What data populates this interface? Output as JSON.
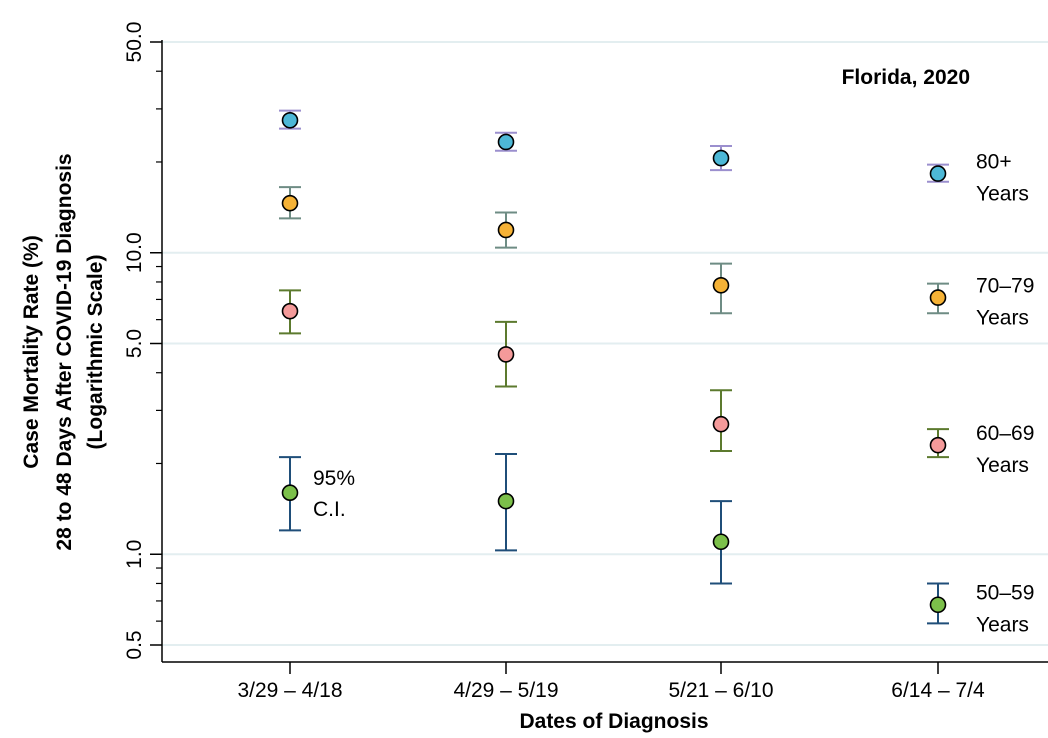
{
  "chart_data": {
    "type": "scatter",
    "title": "",
    "annotation": "Florida, 2020",
    "xlabel": "Dates of Diagnosis",
    "ylabel_lines": [
      "Case Mortality Rate (%)",
      "28 to 48 Days After COVID-19 Diagnosis",
      "(Logarithmic Scale)"
    ],
    "y_scale": "log",
    "ylim": [
      0.5,
      50.0
    ],
    "y_ticks": [
      {
        "value": 0.5,
        "label": "0.5"
      },
      {
        "value": 1.0,
        "label": "1.0"
      },
      {
        "value": 5.0,
        "label": "5.0"
      },
      {
        "value": 10.0,
        "label": "10.0"
      },
      {
        "value": 50.0,
        "label": "50.0"
      }
    ],
    "y_minor_ticks": [
      0.6,
      0.7,
      0.8,
      0.9,
      2,
      3,
      4,
      6,
      7,
      8,
      9,
      20,
      30,
      40
    ],
    "grid_lines": [
      0.5,
      1.0,
      5.0,
      10.0,
      50.0
    ],
    "grid": true,
    "categories": [
      "3/29 – 4/18",
      "4/29 – 5/19",
      "5/21 – 6/10",
      "6/14 – 7/4"
    ],
    "ci_note": [
      "95%",
      "C.I."
    ],
    "series": [
      {
        "name": "80+ Years",
        "label_lines": [
          "80+",
          "Years"
        ],
        "color": "#4db8d6",
        "ci_color": "#9b8fce",
        "values": [
          27.5,
          23.3,
          20.6,
          18.3
        ],
        "ci_low": [
          25.8,
          21.8,
          18.8,
          17.2
        ],
        "ci_high": [
          29.6,
          25.0,
          22.6,
          19.6
        ]
      },
      {
        "name": "70–79 Years",
        "label_lines": [
          "70–79",
          "Years"
        ],
        "color": "#f5b236",
        "ci_color": "#6e8c84",
        "values": [
          14.6,
          11.9,
          7.8,
          7.1
        ],
        "ci_low": [
          13.0,
          10.4,
          6.3,
          6.3
        ],
        "ci_high": [
          16.5,
          13.6,
          9.2,
          7.9
        ]
      },
      {
        "name": "60–69 Years",
        "label_lines": [
          "60–69",
          "Years"
        ],
        "color": "#f49a9a",
        "ci_color": "#5c7a2e",
        "values": [
          6.4,
          4.6,
          2.7,
          2.3
        ],
        "ci_low": [
          5.4,
          3.6,
          2.2,
          2.1
        ],
        "ci_high": [
          7.5,
          5.9,
          3.5,
          2.6
        ]
      },
      {
        "name": "50–59 Years",
        "label_lines": [
          "50–59",
          "Years"
        ],
        "color": "#7cc04a",
        "ci_color": "#1f4e79",
        "values": [
          1.6,
          1.5,
          1.1,
          0.68
        ],
        "ci_low": [
          1.2,
          1.03,
          0.8,
          0.59
        ],
        "ci_high": [
          2.1,
          2.15,
          1.5,
          0.8
        ]
      }
    ]
  }
}
